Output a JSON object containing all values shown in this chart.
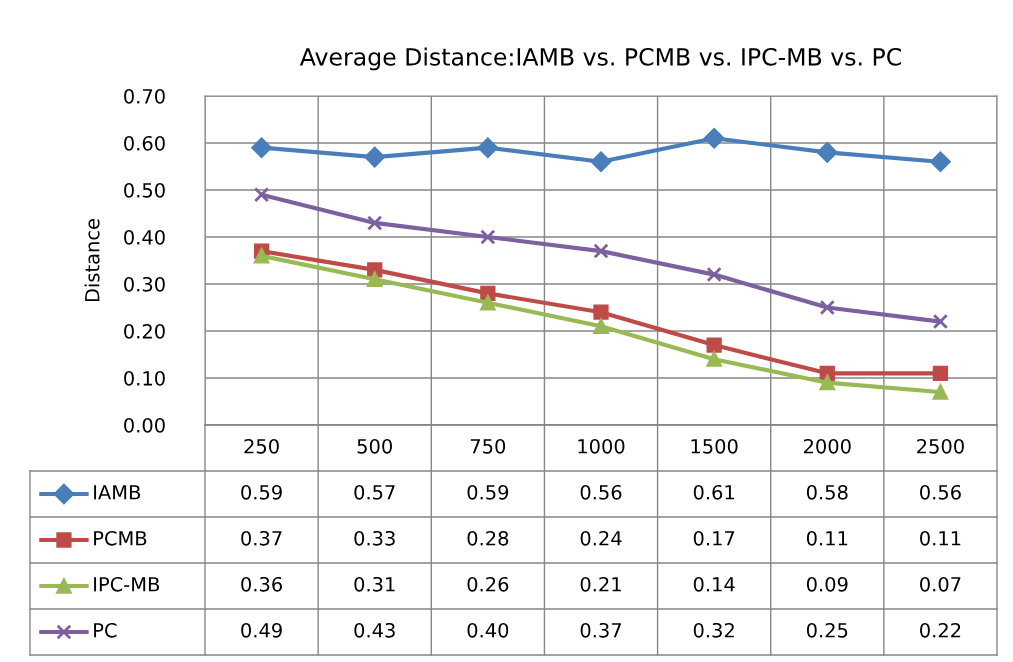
{
  "chart_data": {
    "type": "line",
    "title": "Average Distance:IAMB vs. PCMB vs. IPC-MB vs. PC",
    "ylabel": "Distance",
    "categories": [
      "250",
      "500",
      "750",
      "1000",
      "1500",
      "2000",
      "2500"
    ],
    "ylim": [
      0,
      0.7
    ],
    "yticks": [
      {
        "value": 0,
        "label": "0.00"
      },
      {
        "value": 0.1,
        "label": "0.10"
      },
      {
        "value": 0.2,
        "label": "0.20"
      },
      {
        "value": 0.3,
        "label": "0.30"
      },
      {
        "value": 0.4,
        "label": "0.40"
      },
      {
        "value": 0.5,
        "label": "0.50"
      },
      {
        "value": 0.6,
        "label": "0.60"
      },
      {
        "value": 0.7,
        "label": "0.70"
      }
    ],
    "grid": true,
    "legend": "bottom left",
    "series": [
      {
        "name": "IAMB",
        "color": "#4a7ebb",
        "marker": "diamond",
        "values": [
          0.59,
          0.57,
          0.59,
          0.56,
          0.61,
          0.58,
          0.56
        ],
        "value_labels": [
          "0.59",
          "0.57",
          "0.59",
          "0.56",
          "0.61",
          "0.58",
          "0.56"
        ]
      },
      {
        "name": "PCMB",
        "color": "#be4b48",
        "marker": "square",
        "values": [
          0.37,
          0.33,
          0.28,
          0.24,
          0.17,
          0.11,
          0.11
        ],
        "value_labels": [
          "0.37",
          "0.33",
          "0.28",
          "0.24",
          "0.17",
          "0.11",
          "0.11"
        ]
      },
      {
        "name": "IPC-MB",
        "color": "#98b954",
        "marker": "triangle",
        "values": [
          0.36,
          0.31,
          0.26,
          0.21,
          0.14,
          0.09,
          0.07
        ],
        "value_labels": [
          "0.36",
          "0.31",
          "0.26",
          "0.21",
          "0.14",
          "0.09",
          "0.07"
        ]
      },
      {
        "name": "PC",
        "color": "#7d60a0",
        "marker": "cross",
        "values": [
          0.49,
          0.43,
          0.4,
          0.37,
          0.32,
          0.25,
          0.22
        ],
        "value_labels": [
          "0.49",
          "0.43",
          "0.40",
          "0.37",
          "0.32",
          "0.25",
          "0.22"
        ]
      }
    ]
  }
}
